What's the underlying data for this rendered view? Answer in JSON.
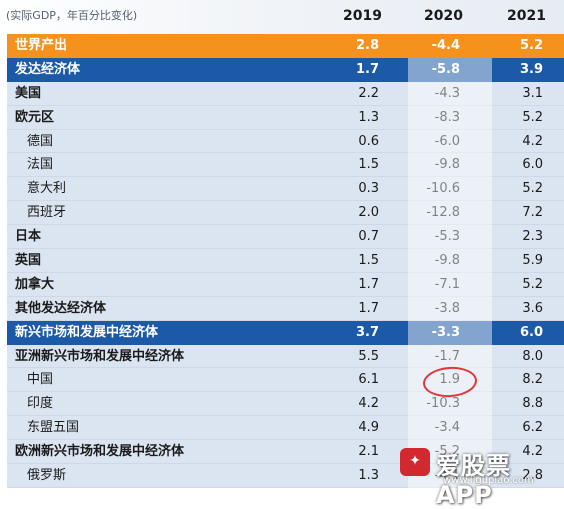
{
  "header": {
    "unit": "(实际GDP，年百分比变化)",
    "years": [
      "2019",
      "2020",
      "2021"
    ]
  },
  "colors": {
    "orange": "#f5921e",
    "blue": "#1c5aa7",
    "row": "#dbe5f1",
    "annotation": "#e0373a"
  },
  "rows": [
    {
      "label": "世界产出",
      "v2019": "2.8",
      "v2020": "-4.4",
      "v2021": "5.2"
    },
    {
      "label": "发达经济体",
      "v2019": "1.7",
      "v2020": "-5.8",
      "v2021": "3.9"
    },
    {
      "label": "美国",
      "v2019": "2.2",
      "v2020": "-4.3",
      "v2021": "3.1"
    },
    {
      "label": "欧元区",
      "v2019": "1.3",
      "v2020": "-8.3",
      "v2021": "5.2"
    },
    {
      "label": "德国",
      "v2019": "0.6",
      "v2020": "-6.0",
      "v2021": "4.2"
    },
    {
      "label": "法国",
      "v2019": "1.5",
      "v2020": "-9.8",
      "v2021": "6.0"
    },
    {
      "label": "意大利",
      "v2019": "0.3",
      "v2020": "-10.6",
      "v2021": "5.2"
    },
    {
      "label": "西班牙",
      "v2019": "2.0",
      "v2020": "-12.8",
      "v2021": "7.2"
    },
    {
      "label": "日本",
      "v2019": "0.7",
      "v2020": "-5.3",
      "v2021": "2.3"
    },
    {
      "label": "英国",
      "v2019": "1.5",
      "v2020": "-9.8",
      "v2021": "5.9"
    },
    {
      "label": "加拿大",
      "v2019": "1.7",
      "v2020": "-7.1",
      "v2021": "5.2"
    },
    {
      "label": "其他发达经济体",
      "v2019": "1.7",
      "v2020": "-3.8",
      "v2021": "3.6"
    },
    {
      "label": "新兴市场和发展中经济体",
      "v2019": "3.7",
      "v2020": "-3.3",
      "v2021": "6.0"
    },
    {
      "label": "亚洲新兴市场和发展中经济体",
      "v2019": "5.5",
      "v2020": "-1.7",
      "v2021": "8.0"
    },
    {
      "label": "中国",
      "v2019": "6.1",
      "v2020": "1.9",
      "v2021": "8.2"
    },
    {
      "label": "印度",
      "v2019": "4.2",
      "v2020": "-10.3",
      "v2021": "8.8"
    },
    {
      "label": "东盟五国",
      "v2019": "4.9",
      "v2020": "-3.4",
      "v2021": "6.2"
    },
    {
      "label": "欧洲新兴市场和发展中经济体",
      "v2019": "2.1",
      "v2020": "-5.2",
      "v2021": "4.2"
    },
    {
      "label": "俄罗斯",
      "v2019": "1.3",
      "v2020": "-4.1",
      "v2021": "2.8"
    }
  ],
  "watermark": {
    "text": "爱股票APP",
    "url": "www.iigupiao.com"
  }
}
